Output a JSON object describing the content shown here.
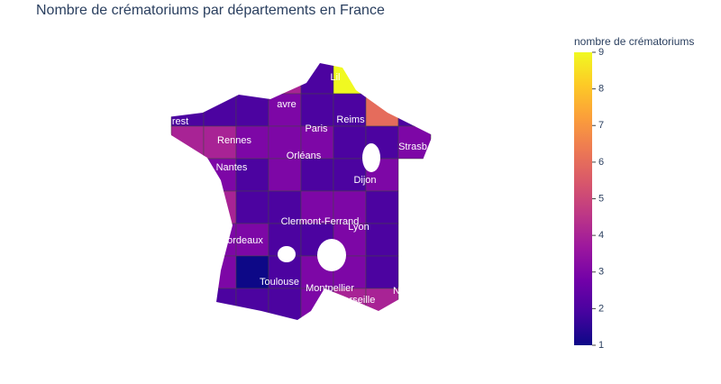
{
  "chart_data": {
    "type": "choropleth",
    "title": "Nombre de crématoriums par départements en France",
    "colorbar_title": "nombre de crématoriums",
    "colorscale": [
      "#0d0887",
      "#46039f",
      "#7201a8",
      "#9c179e",
      "#bd3786",
      "#d8576b",
      "#ed7953",
      "#fb9f3a",
      "#fdca26",
      "#f0f921"
    ],
    "clim": [
      1,
      9
    ],
    "cticks": [
      1,
      2,
      3,
      4,
      5,
      6,
      7,
      8,
      9
    ],
    "values": [
      4,
      2,
      9,
      2,
      2,
      2,
      3,
      2,
      2,
      6,
      2,
      4,
      4,
      3,
      3,
      3,
      2,
      2,
      3,
      3,
      2,
      3,
      2,
      2,
      3,
      4,
      2,
      2,
      3,
      3,
      2,
      3,
      3,
      2,
      2,
      3,
      2,
      3,
      1,
      2,
      3,
      3,
      2,
      2,
      2,
      2,
      3,
      4,
      4
    ],
    "cities": [
      "rest",
      "avre",
      "Lil",
      "Reims",
      "Paris",
      "Rennes",
      "Strasb",
      "Orléans",
      "Nantes",
      "Dijon",
      "Clermont-Ferrand",
      "Lyon",
      "ordeaux",
      "Toulouse",
      "Montpellier",
      "rseille",
      "Nic"
    ]
  }
}
